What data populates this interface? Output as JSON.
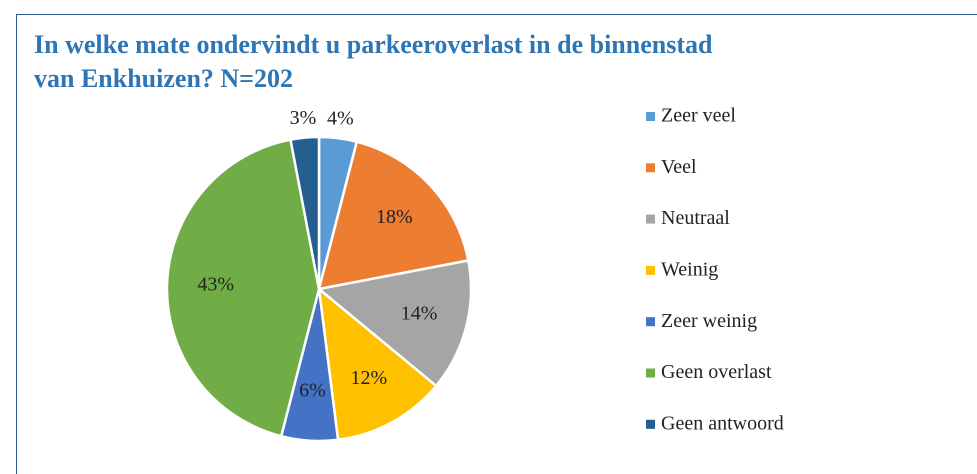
{
  "chart_data": {
    "type": "pie",
    "title": "In welke mate ondervindt u parkeeroverlast in de binnenstad van Enkhuizen? N=202",
    "categories": [
      "Zeer veel",
      "Veel",
      "Neutraal",
      "Weinig",
      "Zeer weinig",
      "Geen overlast",
      "Geen antwoord"
    ],
    "values": [
      4,
      18,
      14,
      12,
      6,
      43,
      3
    ],
    "value_labels": [
      "4%",
      "18%",
      "14%",
      "12%",
      "6%",
      "43%",
      "3%"
    ],
    "colors": [
      "#5b9bd5",
      "#ed7d31",
      "#a5a5a5",
      "#ffc000",
      "#4472c4",
      "#70ad47",
      "#255e91"
    ],
    "legend": "right"
  }
}
